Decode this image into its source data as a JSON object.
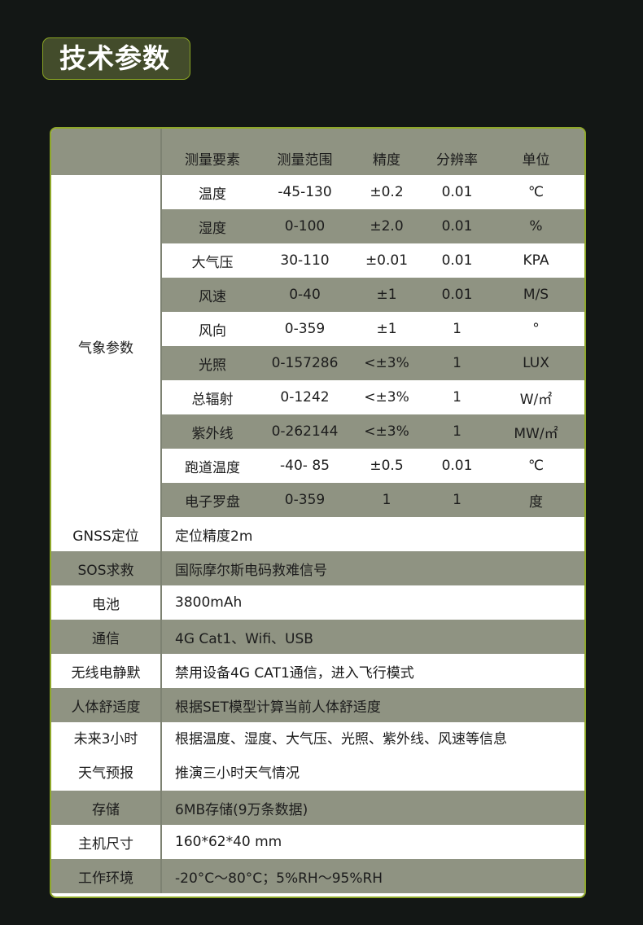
{
  "title": "技术参数",
  "colors": {
    "background": "#131715",
    "accent": "#8fa82a",
    "row_grey": "#8f9382",
    "title_bg": "#434c2b"
  },
  "header": [
    "测量要素",
    "测量范围",
    "精度",
    "分辨率",
    "单位"
  ],
  "weather": {
    "label": "气象参数",
    "rows": [
      [
        "温度",
        "-45-130",
        "±0.2",
        "0.01",
        "℃"
      ],
      [
        "湿度",
        "0-100",
        "±2.0",
        "0.01",
        "%"
      ],
      [
        "大气压",
        "30-110",
        "±0.01",
        "0.01",
        "KPA"
      ],
      [
        "风速",
        "0-40",
        "±1",
        "0.01",
        "M/S"
      ],
      [
        "风向",
        "0-359",
        "±1",
        "1",
        "°"
      ],
      [
        "光照",
        "0-157286",
        "<±3%",
        "1",
        "LUX"
      ],
      [
        "总辐射",
        "0-1242",
        "<±3%",
        "1",
        "W/㎡"
      ],
      [
        "紫外线",
        "0-262144",
        "<±3%",
        "1",
        "MW/㎡"
      ],
      [
        "跑道温度",
        "-40- 85",
        "±0.5",
        "0.01",
        "℃"
      ],
      [
        "电子罗盘",
        "0-359",
        "1",
        "1",
        "度"
      ]
    ]
  },
  "specs": [
    {
      "label": "GNSS定位",
      "value": "定位精度2m"
    },
    {
      "label": "SOS求救",
      "value": "国际摩尔斯电码救难信号"
    },
    {
      "label": "电池",
      "value": "3800mAh"
    },
    {
      "label": "通信",
      "value": "4G Cat1、Wifi、USB"
    },
    {
      "label": "无线电静默",
      "value": "禁用设备4G CAT1通信，进入飞行模式"
    },
    {
      "label": "人体舒适度",
      "value": "根据SET模型计算当前人体舒适度"
    },
    {
      "label": "未来3小时",
      "label2": "天气预报",
      "value": "根据温度、湿度、大气压、光照、紫外线、风速等信息",
      "value2": "推演三小时天气情况"
    },
    {
      "label": "存储",
      "value": "6MB存储(9万条数据)"
    },
    {
      "label": "主机尺寸",
      "value": "160*62*40 mm"
    },
    {
      "label": "工作环境",
      "value": "-20°C～80°C；5%RH～95%RH"
    }
  ]
}
